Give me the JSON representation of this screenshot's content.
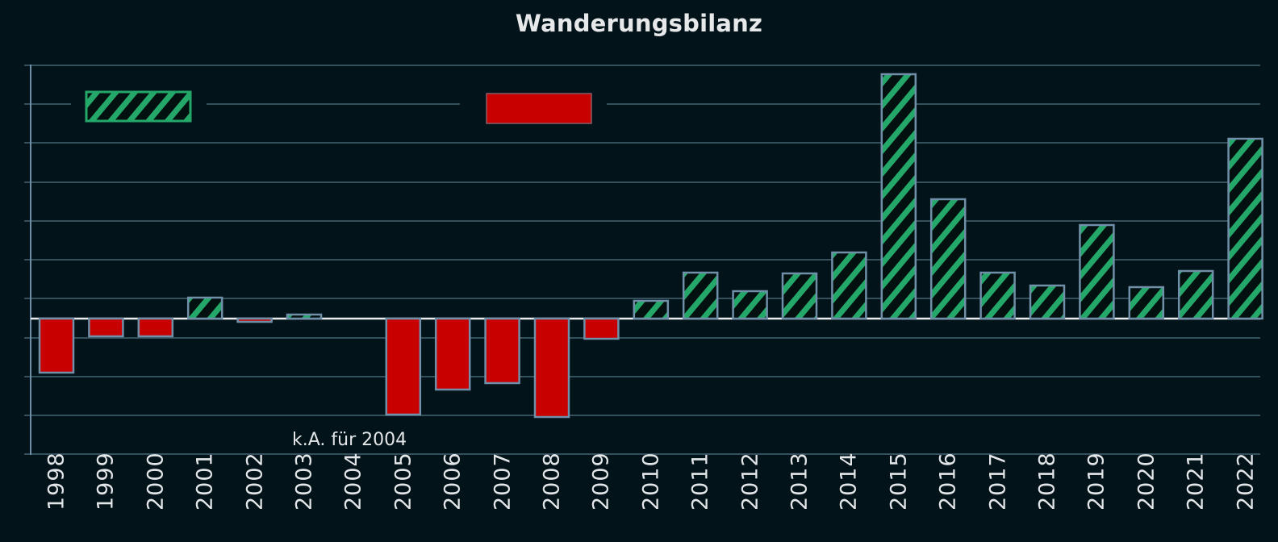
{
  "chart_data": {
    "type": "bar",
    "title": "Wanderungsbilanz",
    "xlabel": "",
    "ylabel": "",
    "units_note": "values estimated in relative pixel units (no y-axis tick labels shown); 1 gridline spacing ≈ 48 units",
    "categories": [
      "1998",
      "1999",
      "2000",
      "2001",
      "2002",
      "2003",
      "2004",
      "2005",
      "2006",
      "2007",
      "2008",
      "2009",
      "2010",
      "2011",
      "2012",
      "2013",
      "2014",
      "2015",
      "2016",
      "2017",
      "2018",
      "2019",
      "2020",
      "2021",
      "2022"
    ],
    "values": [
      -67,
      -22,
      -22,
      26,
      -4,
      5,
      null,
      -119,
      -88,
      -80,
      -122,
      -25,
      22,
      57,
      34,
      56,
      82,
      303,
      148,
      57,
      41,
      116,
      39,
      59,
      223
    ],
    "ylim": [
      -170,
      315
    ],
    "grid": true,
    "legend": {
      "position": "top-left, inside plot",
      "entries": [
        {
          "label": "",
          "style": "green-hatched",
          "meaning": "positive balance"
        },
        {
          "label": "",
          "style": "red-solid",
          "meaning": "negative balance"
        }
      ]
    },
    "annotations": [
      "k.A. für 2004"
    ],
    "colors": {
      "positive_fill": "#24a86a",
      "negative_fill": "#c80000",
      "bar_outline": "#6f90a8",
      "gridline": "#34505c",
      "background": "#03131a"
    }
  },
  "annotation": "k.A. für 2004"
}
